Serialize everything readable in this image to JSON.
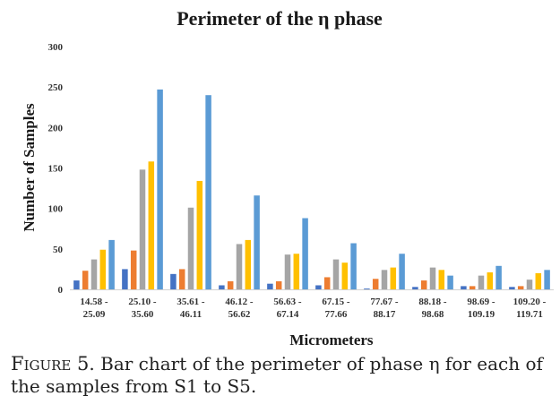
{
  "chart_data": {
    "type": "bar",
    "title": "Perimeter of the η phase",
    "xlabel": "Micrometers",
    "ylabel": "Number of Samples",
    "ylim": [
      0,
      300
    ],
    "yticks": [
      0,
      50,
      100,
      150,
      200,
      250,
      300
    ],
    "grid": false,
    "legend": "none",
    "categories": [
      [
        "14.58 -",
        "25.09"
      ],
      [
        "25.10 -",
        "35.60"
      ],
      [
        "35.61 -",
        "46.11"
      ],
      [
        "46.12 -",
        "56.62"
      ],
      [
        "56.63 -",
        "67.14"
      ],
      [
        "67.15 -",
        "77.66"
      ],
      [
        "77.67 -",
        "88.17"
      ],
      [
        "88.18 -",
        "98.68"
      ],
      [
        "98.69 -",
        "109.19"
      ],
      [
        "109.20 -",
        "119.71"
      ]
    ],
    "series": [
      {
        "color": "#4472c4",
        "values": [
          11,
          25,
          19,
          5,
          7,
          5,
          1,
          3,
          4,
          3
        ]
      },
      {
        "color": "#ed7d31",
        "values": [
          23,
          48,
          25,
          10,
          10,
          15,
          13,
          11,
          4,
          4
        ]
      },
      {
        "color": "#a5a5a5",
        "values": [
          37,
          148,
          101,
          56,
          43,
          37,
          24,
          27,
          17,
          12
        ]
      },
      {
        "color": "#ffc000",
        "values": [
          49,
          158,
          134,
          61,
          44,
          33,
          27,
          24,
          21,
          20
        ]
      },
      {
        "color": "#5b9bd5",
        "values": [
          61,
          247,
          240,
          116,
          88,
          57,
          44,
          17,
          29,
          24
        ]
      }
    ]
  },
  "caption": {
    "label": "Figure 5",
    "text": ". Bar chart of the perimeter of phase η for each of the samples from S1 to S5."
  }
}
